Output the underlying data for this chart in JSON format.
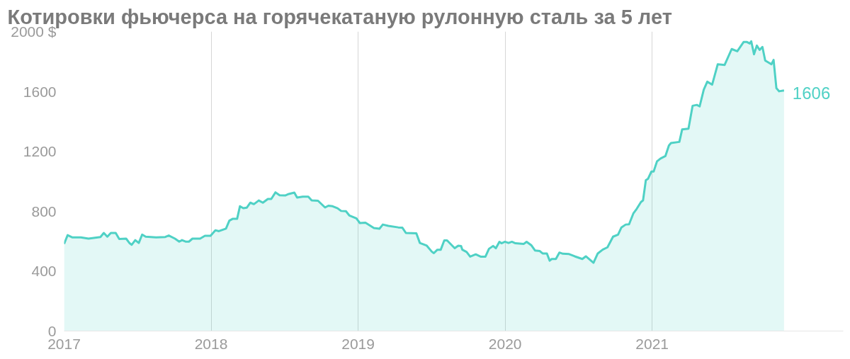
{
  "chart_data": {
    "type": "area",
    "title": "Котировки фьючерса на горячекатаную рулонную сталь за 5 лет",
    "x": [
      2017.0,
      2017.024,
      2017.057,
      2017.114,
      2017.166,
      2017.247,
      2017.27,
      2017.294,
      2017.318,
      2017.351,
      2017.375,
      2017.422,
      2017.446,
      2017.46,
      2017.484,
      2017.508,
      2017.531,
      2017.555,
      2017.626,
      2017.688,
      2017.712,
      2017.754,
      2017.783,
      2017.802,
      2017.826,
      2017.849,
      2017.873,
      2017.925,
      2017.958,
      2017.996,
      2018.029,
      2018.053,
      2018.101,
      2018.124,
      2018.148,
      2018.177,
      2018.196,
      2018.219,
      2018.243,
      2018.267,
      2018.291,
      2018.324,
      2018.352,
      2018.386,
      2018.409,
      2018.438,
      2018.466,
      2018.504,
      2018.528,
      2018.566,
      2018.585,
      2018.623,
      2018.661,
      2018.684,
      2018.727,
      2018.775,
      2018.798,
      2018.827,
      2018.86,
      2018.884,
      2018.917,
      2018.941,
      2018.988,
      2019.012,
      2019.05,
      2019.107,
      2019.145,
      2019.168,
      2019.206,
      2019.273,
      2019.301,
      2019.325,
      2019.396,
      2019.42,
      2019.467,
      2019.501,
      2019.515,
      2019.539,
      2019.562,
      2019.586,
      2019.605,
      2019.657,
      2019.681,
      2019.7,
      2019.709,
      2019.738,
      2019.762,
      2019.8,
      2019.833,
      2019.866,
      2019.89,
      2019.918,
      2019.937,
      2019.961,
      2019.975,
      2019.999,
      2020.023,
      2020.046,
      2020.07,
      2020.127,
      2020.146,
      2020.179,
      2020.203,
      2020.236,
      2020.255,
      2020.284,
      2020.303,
      2020.317,
      2020.345,
      2020.369,
      2020.393,
      2020.435,
      2020.473,
      2020.525,
      2020.549,
      2020.601,
      2020.63,
      2020.663,
      2020.696,
      2020.734,
      2020.768,
      2020.791,
      2020.82,
      2020.843,
      2020.872,
      2020.891,
      2020.924,
      2020.938,
      2020.957,
      2020.972,
      2020.995,
      2021.01,
      2021.033,
      2021.057,
      2021.09,
      2021.114,
      2021.128,
      2021.185,
      2021.204,
      2021.247,
      2021.275,
      2021.304,
      2021.323,
      2021.351,
      2021.375,
      2021.408,
      2021.446,
      2021.493,
      2021.541,
      2021.579,
      2021.622,
      2021.645,
      2021.664,
      2021.674,
      2021.693,
      2021.712,
      2021.731,
      2021.75,
      2021.769,
      2021.811,
      2021.826,
      2021.845,
      2021.864,
      2021.897
    ],
    "series": [
      {
        "color": "#4fd1c5",
        "values": [
          582,
          640,
          625,
          625,
          617,
          628,
          655,
          630,
          655,
          655,
          615,
          617,
          586,
          576,
          607,
          588,
          644,
          630,
          625,
          628,
          638,
          617,
          597,
          607,
          597,
          597,
          617,
          617,
          636,
          636,
          673,
          667,
          684,
          737,
          750,
          750,
          833,
          820,
          824,
          857,
          847,
          872,
          857,
          882,
          882,
          926,
          907,
          905,
          915,
          924,
          891,
          897,
          897,
          872,
          870,
          825,
          837,
          833,
          820,
          802,
          800,
          771,
          752,
          721,
          723,
          688,
          683,
          711,
          702,
          692,
          690,
          655,
          652,
          588,
          570,
          530,
          520,
          543,
          543,
          605,
          605,
          553,
          570,
          568,
          543,
          528,
          497,
          512,
          497,
          497,
          549,
          568,
          553,
          596,
          586,
          596,
          588,
          596,
          586,
          582,
          596,
          572,
          538,
          534,
          518,
          518,
          470,
          481,
          481,
          524,
          516,
          514,
          499,
          481,
          499,
          456,
          518,
          543,
          559,
          630,
          644,
          692,
          711,
          713,
          785,
          810,
          862,
          872,
          1007,
          1017,
          1065,
          1065,
          1133,
          1152,
          1168,
          1239,
          1255,
          1263,
          1346,
          1351,
          1504,
          1510,
          1500,
          1612,
          1665,
          1645,
          1781,
          1777,
          1883,
          1868,
          1930,
          1930,
          1920,
          1935,
          1848,
          1906,
          1877,
          1897,
          1806,
          1781,
          1810,
          1622,
          1601,
          1606
        ]
      }
    ],
    "annotations": [
      {
        "text": "1606",
        "x": 2021.897,
        "y": 1606
      }
    ],
    "xlim": [
      2017.0,
      2022.3
    ],
    "xticks": [
      {
        "value": 2017,
        "label": "2017"
      },
      {
        "value": 2018,
        "label": "2018"
      },
      {
        "value": 2019,
        "label": "2019"
      },
      {
        "value": 2020,
        "label": "2020"
      },
      {
        "value": 2021,
        "label": "2021"
      }
    ],
    "ylim": [
      0,
      2000
    ],
    "yticks": [
      0,
      400,
      800,
      1200,
      1600,
      {
        "value": 2000,
        "label": "2000 $"
      }
    ],
    "grid": "x",
    "line_style": "solid",
    "marker": "none"
  }
}
